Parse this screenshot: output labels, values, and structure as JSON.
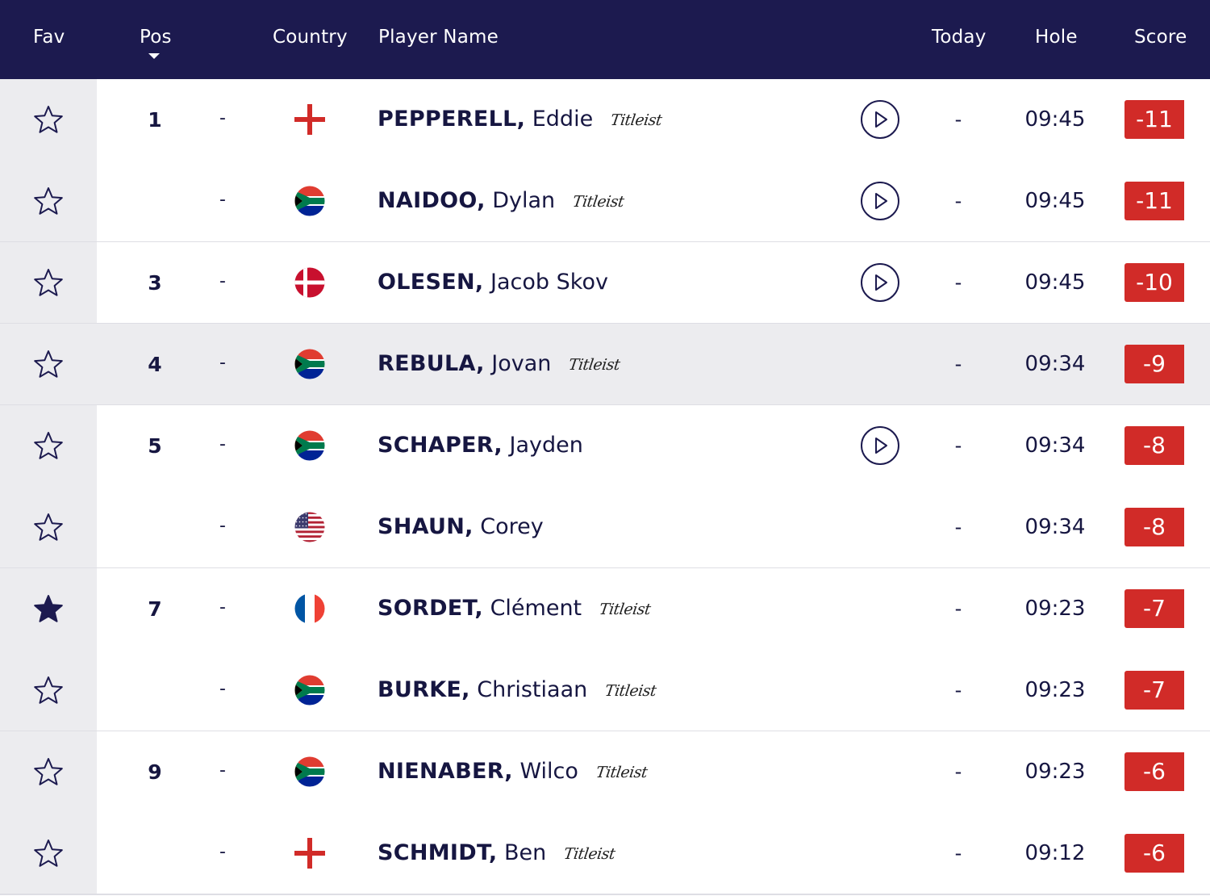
{
  "header": {
    "fav": "Fav",
    "pos": "Pos",
    "country": "Country",
    "player_name": "Player Name",
    "today": "Today",
    "hole": "Hole",
    "score": "Score"
  },
  "colors": {
    "header_bg": "#1c1a4f",
    "score_bg": "#d12b28",
    "text": "#161641",
    "fav_column_bg": "#ececef"
  },
  "rows": [
    {
      "pos": "1",
      "move": "-",
      "flag": "england",
      "last": "PEPPERELL,",
      "first": "Eddie",
      "sponsor": "Titleist",
      "play": true,
      "today": "-",
      "hole": "09:45",
      "score": "-11",
      "fav": false
    },
    {
      "pos": "",
      "move": "-",
      "flag": "south-africa",
      "last": "NAIDOO,",
      "first": "Dylan",
      "sponsor": "Titleist",
      "play": true,
      "today": "-",
      "hole": "09:45",
      "score": "-11",
      "fav": false
    },
    {
      "pos": "3",
      "move": "-",
      "flag": "denmark",
      "last": "OLESEN,",
      "first": "Jacob Skov",
      "sponsor": "",
      "play": true,
      "today": "-",
      "hole": "09:45",
      "score": "-10",
      "fav": false
    },
    {
      "pos": "4",
      "move": "-",
      "flag": "south-africa",
      "last": "REBULA,",
      "first": "Jovan",
      "sponsor": "Titleist",
      "play": false,
      "today": "-",
      "hole": "09:34",
      "score": "-9",
      "fav": false
    },
    {
      "pos": "5",
      "move": "-",
      "flag": "south-africa",
      "last": "SCHAPER,",
      "first": "Jayden",
      "sponsor": "",
      "play": true,
      "today": "-",
      "hole": "09:34",
      "score": "-8",
      "fav": false
    },
    {
      "pos": "",
      "move": "-",
      "flag": "usa",
      "last": "SHAUN,",
      "first": "Corey",
      "sponsor": "",
      "play": false,
      "today": "-",
      "hole": "09:34",
      "score": "-8",
      "fav": false
    },
    {
      "pos": "7",
      "move": "-",
      "flag": "france",
      "last": "SORDET,",
      "first": "Clément",
      "sponsor": "Titleist",
      "play": false,
      "today": "-",
      "hole": "09:23",
      "score": "-7",
      "fav": true
    },
    {
      "pos": "",
      "move": "-",
      "flag": "south-africa",
      "last": "BURKE,",
      "first": "Christiaan",
      "sponsor": "Titleist",
      "play": false,
      "today": "-",
      "hole": "09:23",
      "score": "-7",
      "fav": false
    },
    {
      "pos": "9",
      "move": "-",
      "flag": "south-africa",
      "last": "NIENABER,",
      "first": "Wilco",
      "sponsor": "Titleist",
      "play": false,
      "today": "-",
      "hole": "09:23",
      "score": "-6",
      "fav": false
    },
    {
      "pos": "",
      "move": "-",
      "flag": "england",
      "last": "SCHMIDT,",
      "first": "Ben",
      "sponsor": "Titleist",
      "play": false,
      "today": "-",
      "hole": "09:12",
      "score": "-6",
      "fav": false
    }
  ]
}
